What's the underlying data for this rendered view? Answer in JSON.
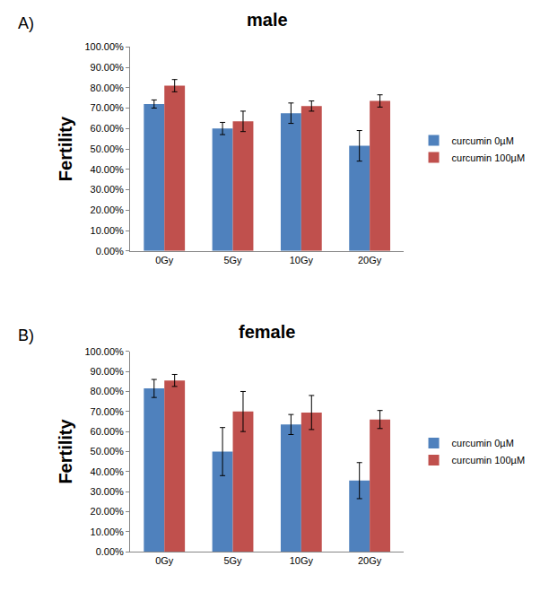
{
  "chart_data": [
    {
      "type": "bar",
      "title": "male",
      "annotations": [
        "A)"
      ],
      "y_label": "Fertility",
      "categories": [
        "0Gy",
        "5Gy",
        "10Gy",
        "20Gy"
      ],
      "series": [
        {
          "name": "curcumin 0µM",
          "color": "#4f81bd",
          "values": [
            72.0,
            60.0,
            67.5,
            51.5
          ],
          "errors": [
            2.0,
            3.0,
            5.0,
            7.5
          ]
        },
        {
          "name": "curcumin 100µM",
          "color": "#c0504d",
          "values": [
            81.0,
            63.5,
            71.0,
            73.5
          ],
          "errors": [
            3.0,
            5.0,
            2.5,
            3.0
          ]
        }
      ],
      "ylim": [
        0,
        100
      ],
      "yticks": [
        {
          "value": 0,
          "label": "0.00%"
        },
        {
          "value": 10,
          "label": "10.00%"
        },
        {
          "value": 20,
          "label": "20.00%"
        },
        {
          "value": 30,
          "label": "30.00%"
        },
        {
          "value": 40,
          "label": "40.00%"
        },
        {
          "value": 50,
          "label": "50.00%"
        },
        {
          "value": 60,
          "label": "60.00%"
        },
        {
          "value": 70,
          "label": "70.00%"
        },
        {
          "value": 80,
          "label": "80.00%"
        },
        {
          "value": 90,
          "label": "90.00%"
        },
        {
          "value": 100,
          "label": "100.00%"
        }
      ],
      "grid": false,
      "legend": "right"
    },
    {
      "type": "bar",
      "title": "female",
      "annotations": [
        "B)"
      ],
      "y_label": "Fertility",
      "categories": [
        "0Gy",
        "5Gy",
        "10Gy",
        "20Gy"
      ],
      "series": [
        {
          "name": "curcumin 0µM",
          "color": "#4f81bd",
          "values": [
            81.5,
            50.0,
            63.5,
            35.5
          ],
          "errors": [
            4.5,
            12.0,
            5.0,
            9.0
          ]
        },
        {
          "name": "curcumin 100µM",
          "color": "#c0504d",
          "values": [
            85.5,
            70.0,
            69.5,
            66.0
          ],
          "errors": [
            3.0,
            10.0,
            8.5,
            4.5
          ]
        }
      ],
      "ylim": [
        0,
        100
      ],
      "yticks": [
        {
          "value": 0,
          "label": "0.00%"
        },
        {
          "value": 10,
          "label": "10.00%"
        },
        {
          "value": 20,
          "label": "20.00%"
        },
        {
          "value": 30,
          "label": "30.00%"
        },
        {
          "value": 40,
          "label": "40.00%"
        },
        {
          "value": 50,
          "label": "50.00%"
        },
        {
          "value": 60,
          "label": "60.00%"
        },
        {
          "value": 70,
          "label": "70.00%"
        },
        {
          "value": 80,
          "label": "80.00%"
        },
        {
          "value": 90,
          "label": "90.00%"
        },
        {
          "value": 100,
          "label": "100.00%"
        }
      ],
      "grid": false,
      "legend": "right"
    }
  ]
}
